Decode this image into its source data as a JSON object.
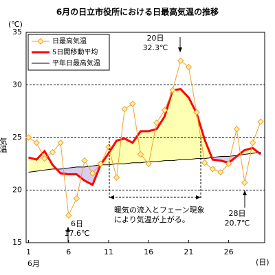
{
  "chart_data": {
    "type": "line",
    "title": "6月の日立市役所における日最高気温の推移",
    "y_label": "気温",
    "y_unit": "(℃)",
    "x_unit": "(日)",
    "x_month": "6月",
    "x": [
      1,
      2,
      3,
      4,
      5,
      6,
      7,
      8,
      9,
      10,
      11,
      12,
      13,
      14,
      15,
      16,
      17,
      18,
      19,
      20,
      21,
      22,
      23,
      24,
      25,
      26,
      27,
      28,
      29,
      30
    ],
    "xlim": [
      0.7,
      30.5
    ],
    "xticks": [
      1,
      6,
      11,
      16,
      21,
      26
    ],
    "ylim": [
      15,
      35
    ],
    "yticks": [
      15,
      20,
      25,
      30,
      35
    ],
    "grid": true,
    "series": [
      {
        "name": "日最高気温",
        "color": "#f0a030",
        "values": [
          25.0,
          24.5,
          23.0,
          23.6,
          24.5,
          17.6,
          19.2,
          22.8,
          21.6,
          22.5,
          24.1,
          21.2,
          27.7,
          28.2,
          23.4,
          22.5,
          26.4,
          27.6,
          29.5,
          32.3,
          31.7,
          27.4,
          22.6,
          22.0,
          21.7,
          22.5,
          25.8,
          20.7,
          24.5,
          26.5
        ]
      },
      {
        "name": "5日間移動平均",
        "color": "#ff0000",
        "values": [
          23.1,
          22.9,
          23.7,
          22.4,
          21.6,
          21.5,
          21.5,
          20.9,
          20.5,
          22.4,
          23.5,
          24.7,
          24.9,
          24.5,
          25.6,
          25.6,
          25.8,
          27.0,
          29.5,
          29.6,
          28.8,
          27.3,
          24.8,
          22.9,
          22.8,
          22.6,
          23.2,
          23.8,
          24.0,
          23.4
        ]
      },
      {
        "name": "平年日最高気温",
        "color": "#000000",
        "values": [
          21.7,
          21.8,
          21.9,
          22.0,
          22.0,
          22.1,
          22.2,
          22.2,
          22.3,
          22.4,
          22.4,
          22.5,
          22.5,
          22.6,
          22.6,
          22.7,
          22.7,
          22.8,
          22.8,
          22.9,
          22.9,
          23.0,
          23.0,
          23.1,
          23.2,
          23.2,
          23.3,
          23.4,
          23.5,
          23.6
        ]
      }
    ],
    "annotations": [
      {
        "lines": [
          "20日",
          "32.3℃"
        ]
      },
      {
        "lines": [
          "6日",
          "17.6℃"
        ]
      },
      {
        "lines": [
          "28日",
          "20.7℃"
        ]
      },
      {
        "lines": [
          "暖気の流入とフェーン現象",
          "により気温が上がる。"
        ]
      }
    ]
  }
}
